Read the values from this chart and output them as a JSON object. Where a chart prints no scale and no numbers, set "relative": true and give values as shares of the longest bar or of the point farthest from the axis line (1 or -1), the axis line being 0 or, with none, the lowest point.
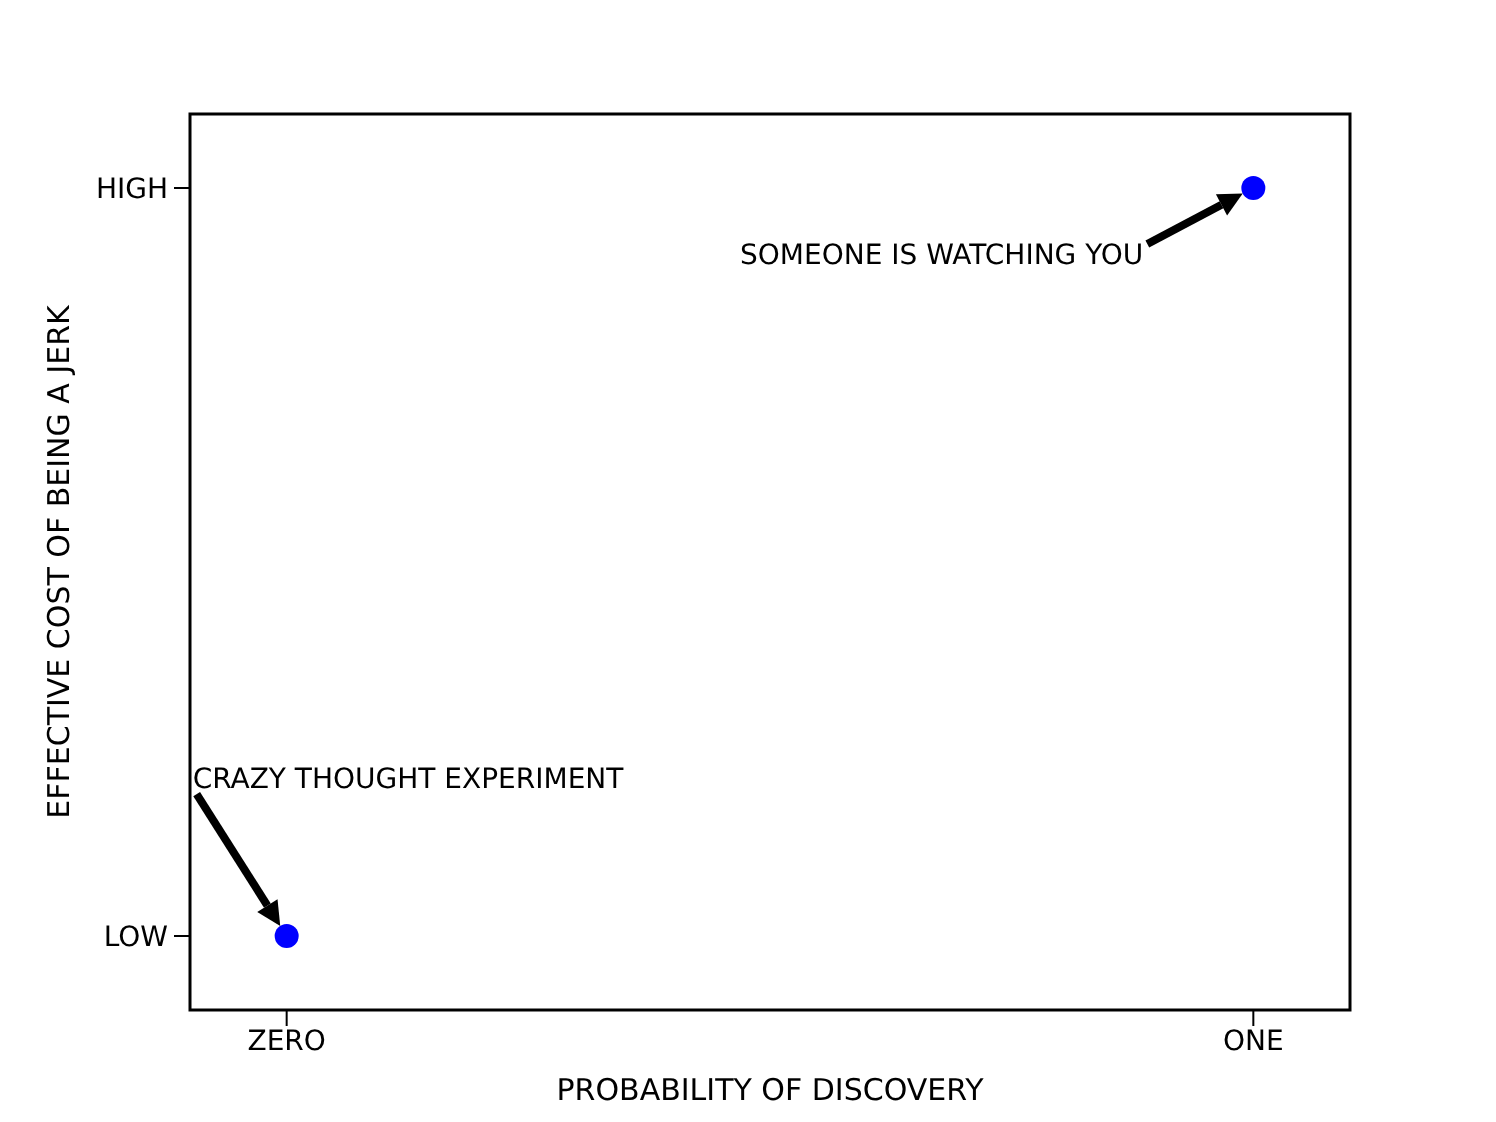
{
  "chart_data": {
    "type": "scatter",
    "xlabel": "PROBABILITY OF DISCOVERY",
    "ylabel": "EFFECTIVE COST OF BEING A JERK",
    "categories": [
      "ZERO",
      "ONE"
    ],
    "relative": true,
    "series": [
      {
        "color": "#0000ff",
        "values": [
          0.09,
          1
        ]
      }
    ],
    "marker": "circle",
    "grid": false,
    "legend": false,
    "annotations": [
      "SOMEONE IS WATCHING YOU",
      "CRAZY THOUGHT EXPERIMENT",
      "LOW",
      "HIGH"
    ]
  }
}
